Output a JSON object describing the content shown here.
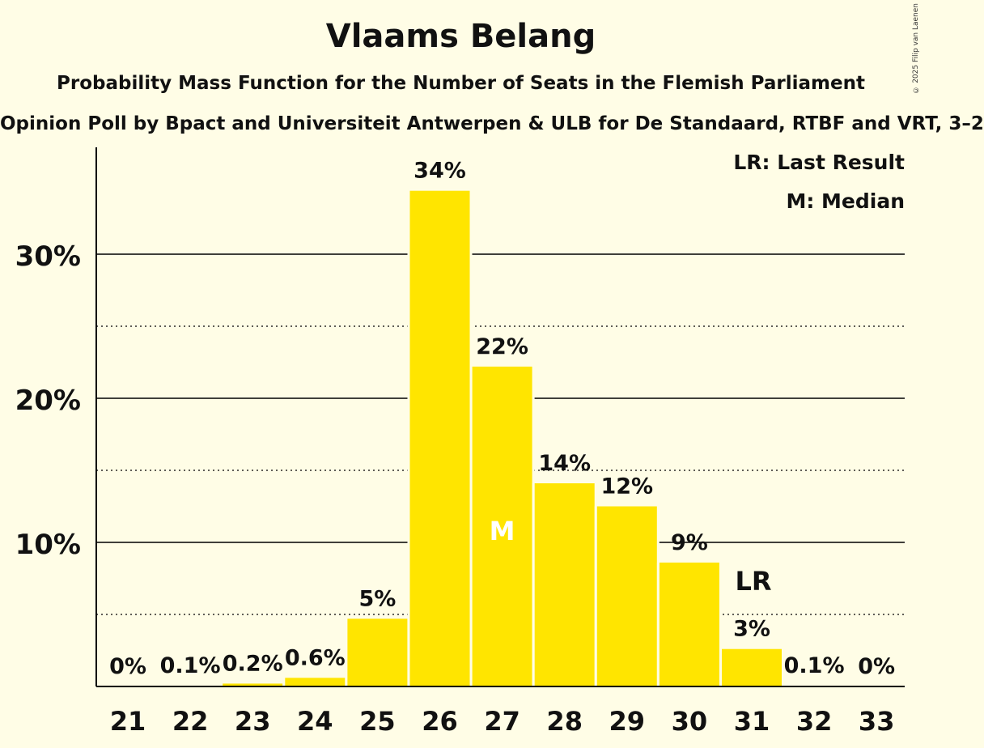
{
  "header": {
    "title": "Vlaams Belang",
    "subtitle": "Probability Mass Function for the Number of Seats in the Flemish Parliament",
    "source": "Opinion Poll by Bpact and Universiteit Antwerpen & ULB for De Standaard, RTBF and VRT, 3–2",
    "copyright": "© 2025 Filip van Laenen"
  },
  "legend": {
    "last_result": "LR: Last Result",
    "median": "M: Median"
  },
  "chart_data": {
    "type": "bar",
    "title": "Vlaams Belang",
    "categories": [
      "21",
      "22",
      "23",
      "24",
      "25",
      "26",
      "27",
      "28",
      "29",
      "30",
      "31",
      "32",
      "33"
    ],
    "values": [
      0,
      0.05,
      0.2,
      0.6,
      4.7,
      34.4,
      22.2,
      14.1,
      12.5,
      8.6,
      2.6,
      0.05,
      0
    ],
    "value_labels": [
      "0%",
      "0.1%",
      "0.2%",
      "0.6%",
      "5%",
      "34%",
      "22%",
      "14%",
      "12%",
      "9%",
      "3%",
      "0.1%",
      "0%"
    ],
    "y_ticks": [
      {
        "value": 10,
        "label": "10%"
      },
      {
        "value": 20,
        "label": "20%"
      },
      {
        "value": 30,
        "label": "30%"
      }
    ],
    "minor_gridlines": [
      5,
      15,
      25
    ],
    "ylim": [
      0,
      37.5
    ],
    "median_category": "27",
    "median_marker": "M",
    "last_result_category": "31",
    "last_result_marker": "LR",
    "bar_color": "#FFE500",
    "grid": true,
    "legend_position": "top-right"
  }
}
